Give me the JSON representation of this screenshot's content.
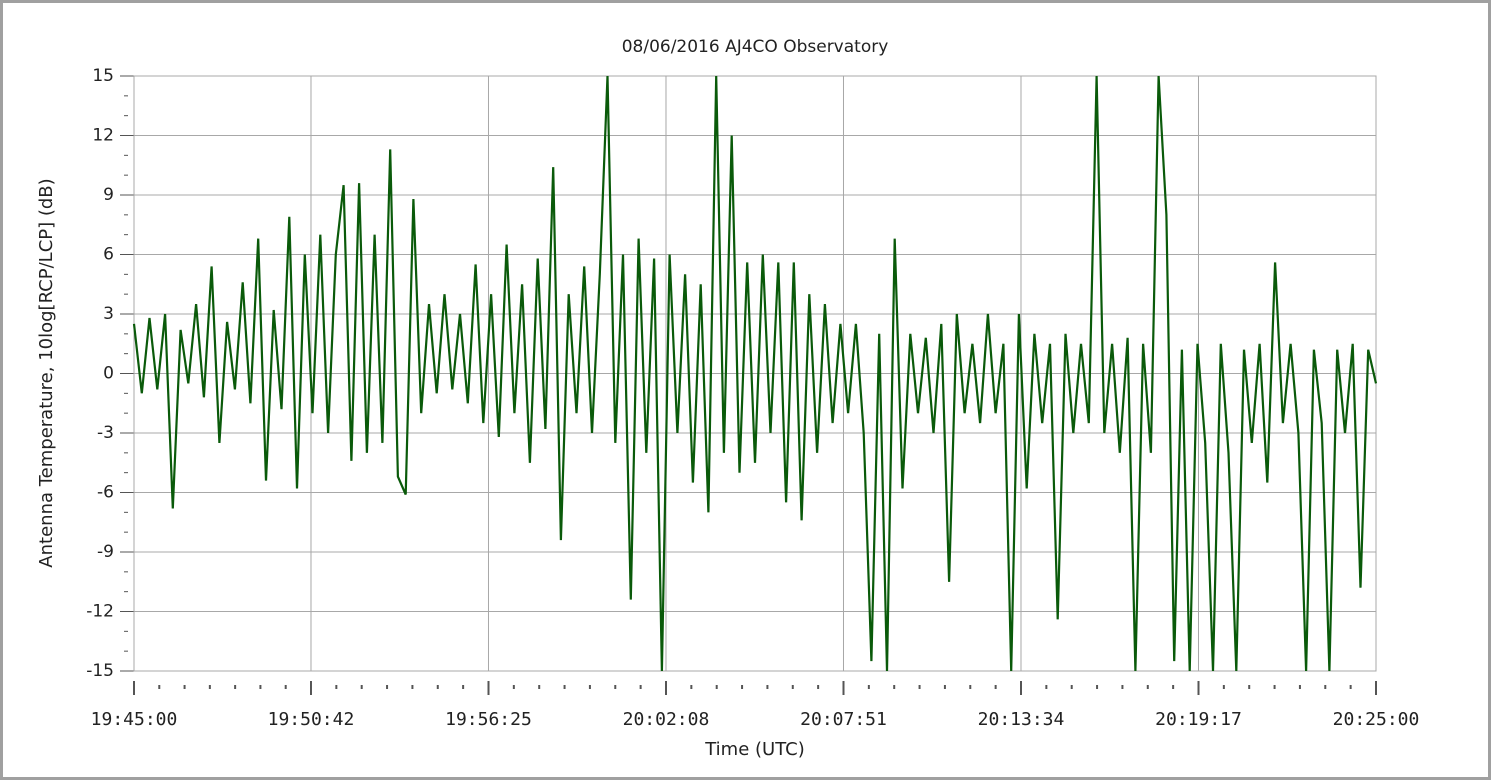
{
  "chart_data": {
    "type": "line",
    "title": "08/06/2016    AJ4CO Observatory",
    "x_label": "Time (UTC)",
    "y_label": "Antenna Temperature,  10log[RCP/LCP] (dB)",
    "color": "#0a5a0a",
    "grid": true,
    "xlim": [
      "19:45:00",
      "20:25:00"
    ],
    "xticks": [
      "19:45:00",
      "19:50:42",
      "19:56:25",
      "20:02:08",
      "20:07:51",
      "20:13:34",
      "20:19:17",
      "20:25:00"
    ],
    "ylim": [
      -15,
      15
    ],
    "yticks": [
      -15,
      -12,
      -9,
      -6,
      -3,
      0,
      3,
      6,
      9,
      12,
      15
    ],
    "x": [
      "19:45:00",
      "19:45:15",
      "19:45:30",
      "19:45:45",
      "19:46:00",
      "19:46:15",
      "19:46:30",
      "19:46:45",
      "19:47:00",
      "19:47:15",
      "19:47:30",
      "19:47:45",
      "19:48:00",
      "19:48:15",
      "19:48:30",
      "19:48:45",
      "19:49:00",
      "19:49:15",
      "19:49:30",
      "19:49:45",
      "19:50:00",
      "19:50:15",
      "19:50:30",
      "19:50:45",
      "19:51:00",
      "19:51:15",
      "19:51:30",
      "19:51:45",
      "19:52:00",
      "19:52:15",
      "19:52:30",
      "19:52:45",
      "19:53:00",
      "19:53:15",
      "19:53:30",
      "19:53:45",
      "19:54:00",
      "19:54:15",
      "19:54:30",
      "19:54:45",
      "19:55:00",
      "19:55:15",
      "19:55:30",
      "19:55:45",
      "19:56:00",
      "19:56:15",
      "19:56:30",
      "19:56:45",
      "19:57:00",
      "19:57:15",
      "19:57:30",
      "19:57:45",
      "19:58:00",
      "19:58:15",
      "19:58:30",
      "19:58:45",
      "19:59:00",
      "19:59:15",
      "19:59:30",
      "19:59:45",
      "20:00:00",
      "20:00:15",
      "20:00:30",
      "20:00:45",
      "20:01:00",
      "20:01:15",
      "20:01:30",
      "20:01:45",
      "20:02:00",
      "20:02:15",
      "20:02:30",
      "20:02:45",
      "20:03:00",
      "20:03:15",
      "20:03:30",
      "20:03:45",
      "20:04:00",
      "20:04:15",
      "20:04:30",
      "20:04:45",
      "20:05:00",
      "20:05:15",
      "20:05:30",
      "20:05:45",
      "20:06:00",
      "20:06:15",
      "20:06:30",
      "20:06:45",
      "20:07:00",
      "20:07:15",
      "20:07:30",
      "20:07:45",
      "20:08:00",
      "20:08:15",
      "20:08:30",
      "20:08:45",
      "20:09:00",
      "20:09:15",
      "20:09:30",
      "20:09:45",
      "20:10:00",
      "20:10:15",
      "20:10:30",
      "20:10:45",
      "20:11:00",
      "20:11:15",
      "20:11:30",
      "20:11:45",
      "20:12:00",
      "20:12:15",
      "20:12:30",
      "20:12:45",
      "20:13:00",
      "20:13:15",
      "20:13:30",
      "20:13:45",
      "20:14:00",
      "20:14:15",
      "20:14:30",
      "20:14:45",
      "20:15:00",
      "20:15:15",
      "20:15:30",
      "20:15:45",
      "20:16:00",
      "20:16:15",
      "20:16:30",
      "20:16:45",
      "20:17:00",
      "20:17:15",
      "20:17:30",
      "20:17:45",
      "20:18:00",
      "20:18:15",
      "20:18:30",
      "20:18:45",
      "20:19:00",
      "20:19:15",
      "20:19:30",
      "20:19:45",
      "20:20:00",
      "20:20:15",
      "20:20:30",
      "20:20:45",
      "20:21:00",
      "20:21:15",
      "20:21:30",
      "20:21:45",
      "20:22:00",
      "20:22:15",
      "20:22:30",
      "20:22:45",
      "20:23:00",
      "20:23:15",
      "20:23:30",
      "20:23:45",
      "20:24:00",
      "20:24:15",
      "20:24:30",
      "20:24:45",
      "20:25:00"
    ],
    "values": [
      2.5,
      -1.0,
      2.8,
      -0.8,
      3.0,
      -6.8,
      2.2,
      -0.5,
      3.5,
      -1.2,
      5.4,
      -3.5,
      2.6,
      -0.8,
      4.6,
      -1.5,
      6.8,
      -5.4,
      3.2,
      -1.8,
      7.9,
      -5.8,
      6.0,
      -2.0,
      7.0,
      -3.0,
      6.0,
      9.5,
      -4.4,
      9.6,
      -4.0,
      7.0,
      -3.5,
      11.3,
      -5.2,
      -6.1,
      8.8,
      -2.0,
      3.5,
      -1.0,
      4.0,
      -0.8,
      3.0,
      -1.5,
      5.5,
      -2.5,
      4.0,
      -3.2,
      6.5,
      -2.0,
      4.5,
      -4.5,
      5.8,
      -2.8,
      10.4,
      -8.4,
      4.0,
      -2.0,
      5.4,
      -3.0,
      5.0,
      15,
      -3.5,
      6.0,
      -11.4,
      6.8,
      -4.0,
      5.8,
      -15,
      6.0,
      -3.0,
      5.0,
      -5.5,
      4.5,
      -7.0,
      15,
      -4.0,
      12.0,
      -5.0,
      5.6,
      -4.5,
      6.0,
      -3.0,
      5.6,
      -6.5,
      5.6,
      -7.4,
      4.0,
      -4.0,
      3.5,
      -2.5,
      2.5,
      -2.0,
      2.5,
      -3.0,
      -14.5,
      2.0,
      -15,
      6.8,
      -5.8,
      2.0,
      -2.0,
      1.8,
      -3.0,
      2.5,
      -10.5,
      3.0,
      -2.0,
      1.5,
      -2.5,
      3.0,
      -2.0,
      1.5,
      -15,
      3.0,
      -5.8,
      2.0,
      -2.5,
      1.5,
      -12.4,
      2.0,
      -3.0,
      1.5,
      -2.5,
      15,
      -3.0,
      1.5,
      -4.0,
      1.8,
      -15,
      1.5,
      -4.0,
      15,
      8.0,
      -14.5,
      1.2,
      -15,
      1.5,
      -3.5,
      -15,
      1.5,
      -4.0,
      -15,
      1.2,
      -3.5,
      1.5,
      -5.5,
      5.6,
      -2.5,
      1.5,
      -3.0,
      -15,
      1.2,
      -2.5,
      -15,
      1.2,
      -3.0,
      1.5,
      -10.8,
      1.2,
      -0.5
    ]
  }
}
